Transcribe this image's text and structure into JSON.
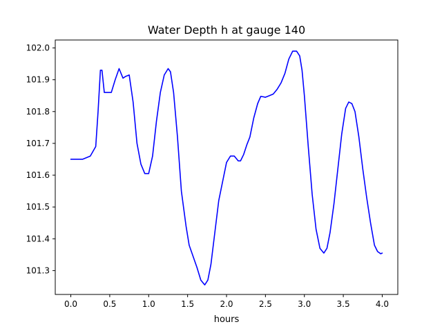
{
  "chart_data": {
    "type": "line",
    "title": "Water Depth h at gauge 140",
    "xlabel": "hours",
    "ylabel": "",
    "xlim": [
      -0.2,
      4.2
    ],
    "ylim": [
      101.225,
      102.025
    ],
    "xticks": [
      0.0,
      0.5,
      1.0,
      1.5,
      2.0,
      2.5,
      3.0,
      3.5,
      4.0
    ],
    "xtick_labels": [
      "0.0",
      "0.5",
      "1.0",
      "1.5",
      "2.0",
      "2.5",
      "3.0",
      "3.5",
      "4.0"
    ],
    "yticks": [
      101.3,
      101.4,
      101.5,
      101.6,
      101.7,
      101.8,
      101.9,
      102.0
    ],
    "ytick_labels": [
      "101.3",
      "101.4",
      "101.5",
      "101.6",
      "101.7",
      "101.8",
      "101.9",
      "102.0"
    ],
    "grid": false,
    "series": [
      {
        "color": "#0000ff",
        "x": [
          0.0,
          0.15,
          0.25,
          0.32,
          0.35,
          0.38,
          0.4,
          0.43,
          0.47,
          0.52,
          0.57,
          0.62,
          0.67,
          0.7,
          0.75,
          0.8,
          0.85,
          0.9,
          0.95,
          1.0,
          1.05,
          1.1,
          1.15,
          1.2,
          1.25,
          1.28,
          1.32,
          1.37,
          1.42,
          1.48,
          1.52,
          1.57,
          1.62,
          1.67,
          1.72,
          1.76,
          1.8,
          1.85,
          1.9,
          1.95,
          2.0,
          2.05,
          2.1,
          2.15,
          2.18,
          2.22,
          2.26,
          2.3,
          2.35,
          2.4,
          2.44,
          2.5,
          2.55,
          2.6,
          2.65,
          2.7,
          2.75,
          2.8,
          2.85,
          2.9,
          2.94,
          2.97,
          3.0,
          3.05,
          3.1,
          3.15,
          3.2,
          3.25,
          3.29,
          3.33,
          3.38,
          3.43,
          3.48,
          3.53,
          3.57,
          3.61,
          3.65,
          3.7,
          3.75,
          3.8,
          3.85,
          3.9,
          3.94,
          3.98,
          4.0
        ],
        "y": [
          101.65,
          101.65,
          101.66,
          101.69,
          101.8,
          101.93,
          101.93,
          101.86,
          101.86,
          101.86,
          101.9,
          101.935,
          101.905,
          101.91,
          101.915,
          101.83,
          101.7,
          101.635,
          101.605,
          101.605,
          101.66,
          101.77,
          101.86,
          101.915,
          101.935,
          101.925,
          101.86,
          101.72,
          101.55,
          101.44,
          101.38,
          101.345,
          101.31,
          101.27,
          101.255,
          101.27,
          101.32,
          101.42,
          101.52,
          101.58,
          101.64,
          101.66,
          101.66,
          101.645,
          101.645,
          101.665,
          101.695,
          101.72,
          101.78,
          101.825,
          101.848,
          101.845,
          101.85,
          101.855,
          101.87,
          101.89,
          101.92,
          101.965,
          101.99,
          101.99,
          101.975,
          101.93,
          101.85,
          101.69,
          101.54,
          101.43,
          101.37,
          101.355,
          101.37,
          101.42,
          101.51,
          101.62,
          101.73,
          101.81,
          101.83,
          101.825,
          101.8,
          101.72,
          101.62,
          101.53,
          101.45,
          101.38,
          101.36,
          101.353,
          101.355
        ]
      }
    ]
  }
}
